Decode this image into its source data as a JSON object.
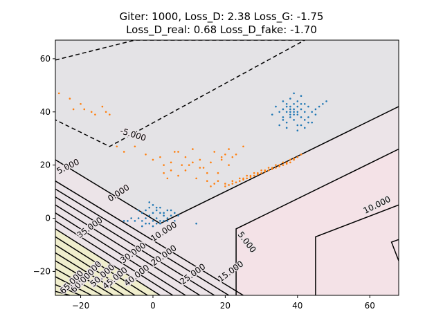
{
  "chart_data": {
    "type": "contour+scatter",
    "title_lines": [
      "Giter: 1000, Loss_D: 2.38 Loss_G: -1.75",
      "Loss_D_real: 0.68 Loss_D_fake: -1.70"
    ],
    "xlabel": "",
    "ylabel": "",
    "xlim": [
      -27,
      68
    ],
    "ylim": [
      -29,
      67
    ],
    "xticks": [
      -20,
      0,
      20,
      40,
      60
    ],
    "yticks": [
      -20,
      0,
      20,
      40,
      60
    ],
    "grid": false,
    "colors": {
      "real": "#1f77b4",
      "fake": "#ff7f0e",
      "contour": "#000000",
      "fill_low": "#e4e3e6",
      "fill_mid": "#ece4e8",
      "fill_right": "#f4e2e7",
      "fill_high": "#f1f0c8"
    },
    "contours": [
      {
        "level": "-5.000",
        "dashed": true,
        "points": [
          [
            -27,
            59.5
          ],
          [
            -5,
            67
          ],
          [
            42,
            67
          ],
          [
            -12,
            27
          ],
          [
            -27,
            37
          ]
        ]
      },
      {
        "level": "0.000",
        "dashed": false,
        "points": [
          [
            -27,
            22
          ],
          [
            2,
            -2
          ],
          [
            68,
            42
          ]
        ]
      },
      {
        "level": "5.000",
        "dashed": false,
        "points": [
          [
            68,
            26
          ],
          [
            23,
            -4
          ],
          [
            23,
            -29
          ]
        ]
      },
      {
        "level": "10.000",
        "dashed": false,
        "points": [
          [
            68,
            5
          ],
          [
            45,
            -7
          ],
          [
            45,
            -29
          ]
        ]
      },
      {
        "level": "",
        "dashed": false,
        "points": [
          [
            68,
            -8
          ],
          [
            66,
            -9
          ],
          [
            68,
            -16
          ]
        ]
      },
      {
        "level": "5.000",
        "dashed": false,
        "points": [
          [
            -27,
            14
          ],
          [
            25,
            -29
          ]
        ]
      },
      {
        "level": "",
        "dashed": false,
        "points": [
          [
            -27,
            11
          ],
          [
            21,
            -29
          ]
        ]
      },
      {
        "level": "",
        "dashed": false,
        "points": [
          [
            -27,
            8
          ],
          [
            17,
            -29
          ]
        ]
      },
      {
        "level": "15.000",
        "dashed": false,
        "points": [
          [
            -27,
            5
          ],
          [
            13,
            -29
          ]
        ]
      },
      {
        "level": "",
        "dashed": false,
        "points": [
          [
            -27,
            2
          ],
          [
            9,
            -29
          ]
        ]
      },
      {
        "level": "20.000",
        "dashed": false,
        "points": [
          [
            -27,
            -1
          ],
          [
            5.5,
            -29
          ]
        ]
      },
      {
        "level": "25.000",
        "dashed": false,
        "points": [
          [
            -27,
            -4
          ],
          [
            2,
            -29
          ]
        ]
      },
      {
        "level": "30.000",
        "dashed": false,
        "points": [
          [
            -27,
            -7
          ],
          [
            -1.5,
            -29
          ]
        ]
      },
      {
        "level": "35.000",
        "dashed": false,
        "points": [
          [
            -27,
            -10
          ],
          [
            -5,
            -29
          ]
        ]
      },
      {
        "level": "40.000",
        "dashed": false,
        "points": [
          [
            -27,
            -13
          ],
          [
            -8,
            -29
          ]
        ]
      },
      {
        "level": "45.000",
        "dashed": false,
        "points": [
          [
            -27,
            -16
          ],
          [
            -11,
            -29
          ]
        ]
      },
      {
        "level": "50.000",
        "dashed": false,
        "points": [
          [
            -27,
            -19
          ],
          [
            -14,
            -29
          ]
        ]
      },
      {
        "level": "55.000",
        "dashed": false,
        "points": [
          [
            -27,
            -22
          ],
          [
            -17,
            -29
          ]
        ]
      },
      {
        "level": "60.000",
        "dashed": false,
        "points": [
          [
            -27,
            -25
          ],
          [
            -20,
            -29
          ]
        ]
      },
      {
        "level": "65.000",
        "dashed": false,
        "points": [
          [
            -27,
            -27.5
          ],
          [
            -23,
            -29
          ]
        ]
      }
    ],
    "contour_labels": [
      {
        "text": "-5.000",
        "x": -5.5,
        "y": 31.5,
        "angle": -17
      },
      {
        "text": "5.000",
        "x": -23.5,
        "y": 19.5,
        "angle": 26
      },
      {
        "text": "0.000",
        "x": -9.5,
        "y": 9.5,
        "angle": 33
      },
      {
        "text": "10.000",
        "x": 3,
        "y": -5,
        "angle": 33
      },
      {
        "text": "35.000",
        "x": -17.5,
        "y": -3.5,
        "angle": 36
      },
      {
        "text": "30.000",
        "x": -5.5,
        "y": -13,
        "angle": 36
      },
      {
        "text": "20.000",
        "x": 3,
        "y": -14,
        "angle": 36
      },
      {
        "text": "25.000",
        "x": 11,
        "y": -21,
        "angle": 36
      },
      {
        "text": "15.000",
        "x": 21.5,
        "y": -20,
        "angle": 36
      },
      {
        "text": "40.000",
        "x": -4.5,
        "y": -21.5,
        "angle": 38
      },
      {
        "text": "45.000",
        "x": -10.5,
        "y": -22.5,
        "angle": 40
      },
      {
        "text": "50.000",
        "x": -14,
        "y": -21.5,
        "angle": 42
      },
      {
        "text": "55.000",
        "x": -17.5,
        "y": -20.5,
        "angle": 45
      },
      {
        "text": "60.000",
        "x": -19.5,
        "y": -23.5,
        "angle": 45
      },
      {
        "text": "65.000",
        "x": -22.5,
        "y": -24,
        "angle": 45
      },
      {
        "text": "5.000",
        "x": 26,
        "y": -9,
        "angle": -52
      },
      {
        "text": "10.000",
        "x": 62,
        "y": 5,
        "angle": 26
      }
    ],
    "real_points": [
      [
        36,
        41
      ],
      [
        37,
        42
      ],
      [
        38,
        40
      ],
      [
        39,
        43
      ],
      [
        40,
        39
      ],
      [
        41,
        41
      ],
      [
        42,
        40
      ],
      [
        43,
        42
      ],
      [
        38,
        38
      ],
      [
        37,
        36
      ],
      [
        39,
        37
      ],
      [
        40,
        44
      ],
      [
        41,
        46
      ],
      [
        39,
        47
      ],
      [
        38,
        45
      ],
      [
        36,
        38
      ],
      [
        35,
        40
      ],
      [
        35,
        35
      ],
      [
        37,
        34
      ],
      [
        40,
        35
      ],
      [
        42,
        37
      ],
      [
        43,
        38
      ],
      [
        44,
        40
      ],
      [
        45,
        41
      ],
      [
        46,
        42
      ],
      [
        47,
        43
      ],
      [
        48,
        44
      ],
      [
        44,
        36
      ],
      [
        42,
        34
      ],
      [
        40,
        33
      ],
      [
        38,
        39
      ],
      [
        39,
        40
      ],
      [
        40,
        42
      ],
      [
        41,
        38
      ],
      [
        36,
        44
      ],
      [
        34,
        42
      ],
      [
        33,
        39
      ],
      [
        37,
        43
      ],
      [
        38,
        42
      ],
      [
        39,
        41
      ],
      [
        40,
        40
      ],
      [
        41,
        43
      ],
      [
        39,
        39
      ],
      [
        38,
        41
      ],
      [
        37,
        40
      ],
      [
        42,
        43
      ],
      [
        43,
        36
      ],
      [
        41,
        35
      ],
      [
        36,
        37
      ],
      [
        45,
        39
      ],
      [
        -3,
        -1
      ],
      [
        -2,
        0
      ],
      [
        -1,
        1
      ],
      [
        0,
        -1
      ],
      [
        1,
        0
      ],
      [
        2,
        -2
      ],
      [
        3,
        1
      ],
      [
        4,
        -1
      ],
      [
        -4,
        0
      ],
      [
        -5,
        -1
      ],
      [
        -6,
        0
      ],
      [
        -3,
        2
      ],
      [
        -2,
        3
      ],
      [
        -1,
        4
      ],
      [
        0,
        2
      ],
      [
        1,
        3
      ],
      [
        2,
        4
      ],
      [
        3,
        2
      ],
      [
        4,
        3
      ],
      [
        5,
        1
      ],
      [
        6,
        2
      ],
      [
        -1,
        -2
      ],
      [
        0,
        -3
      ],
      [
        1,
        -2
      ],
      [
        2,
        -1
      ],
      [
        -2,
        -2
      ],
      [
        3,
        -1
      ],
      [
        -7,
        -1
      ],
      [
        -4,
        3
      ],
      [
        5,
        3
      ],
      [
        7,
        1
      ],
      [
        0,
        5
      ],
      [
        -1,
        6
      ],
      [
        1,
        4
      ],
      [
        2,
        2
      ],
      [
        12,
        -2
      ],
      [
        -8,
        -1
      ],
      [
        -3,
        -3
      ],
      [
        4,
        0
      ],
      [
        6,
        -1
      ]
    ],
    "fake_points": [
      [
        -26,
        47
      ],
      [
        -23,
        45
      ],
      [
        -20,
        43
      ],
      [
        -19,
        41
      ],
      [
        -17,
        40
      ],
      [
        -16,
        39
      ],
      [
        -14,
        42
      ],
      [
        -13,
        40
      ],
      [
        -12,
        39
      ],
      [
        -22,
        41
      ],
      [
        -5,
        27
      ],
      [
        -2,
        24
      ],
      [
        0,
        22
      ],
      [
        3,
        20
      ],
      [
        5,
        18
      ],
      [
        7,
        25
      ],
      [
        9,
        23
      ],
      [
        11,
        21
      ],
      [
        13,
        19
      ],
      [
        15,
        17
      ],
      [
        3,
        17
      ],
      [
        5,
        21
      ],
      [
        7,
        16
      ],
      [
        9,
        18
      ],
      [
        11,
        26
      ],
      [
        13,
        22
      ],
      [
        15,
        14
      ],
      [
        17,
        13
      ],
      [
        19,
        22
      ],
      [
        21,
        20
      ],
      [
        17,
        25
      ],
      [
        19,
        23
      ],
      [
        21,
        26
      ],
      [
        23,
        24
      ],
      [
        25,
        27
      ],
      [
        2,
        23
      ],
      [
        4,
        15
      ],
      [
        8,
        20
      ],
      [
        12,
        15
      ],
      [
        14,
        19
      ],
      [
        16,
        21
      ],
      [
        18,
        17
      ],
      [
        10,
        20
      ],
      [
        6,
        25
      ],
      [
        20,
        24
      ],
      [
        22,
        23
      ],
      [
        -8,
        25
      ],
      [
        -10,
        27
      ],
      [
        18,
        14
      ],
      [
        16,
        12
      ],
      [
        20,
        12
      ],
      [
        22,
        13
      ],
      [
        24,
        14
      ],
      [
        26,
        15
      ],
      [
        28,
        16
      ],
      [
        30,
        17
      ],
      [
        32,
        18
      ],
      [
        34,
        19
      ],
      [
        36,
        20
      ],
      [
        38,
        21
      ],
      [
        21,
        12.5
      ],
      [
        23,
        13.5
      ],
      [
        25,
        14.5
      ],
      [
        27,
        15.5
      ],
      [
        29,
        16.5
      ],
      [
        31,
        17.5
      ],
      [
        33,
        18.5
      ],
      [
        35,
        19.5
      ],
      [
        37,
        20.5
      ],
      [
        39,
        22
      ],
      [
        24,
        15
      ],
      [
        26,
        16
      ],
      [
        28,
        17
      ],
      [
        30,
        18
      ],
      [
        32,
        19
      ],
      [
        34,
        20
      ],
      [
        36,
        21
      ],
      [
        38,
        22
      ],
      [
        40,
        23
      ],
      [
        20,
        13
      ],
      [
        22,
        14
      ],
      [
        25,
        15
      ],
      [
        27,
        16
      ],
      [
        29,
        17
      ],
      [
        31,
        18
      ],
      [
        33,
        19
      ],
      [
        35,
        20
      ],
      [
        37,
        21
      ],
      [
        39,
        22.5
      ],
      [
        41,
        24
      ]
    ]
  }
}
